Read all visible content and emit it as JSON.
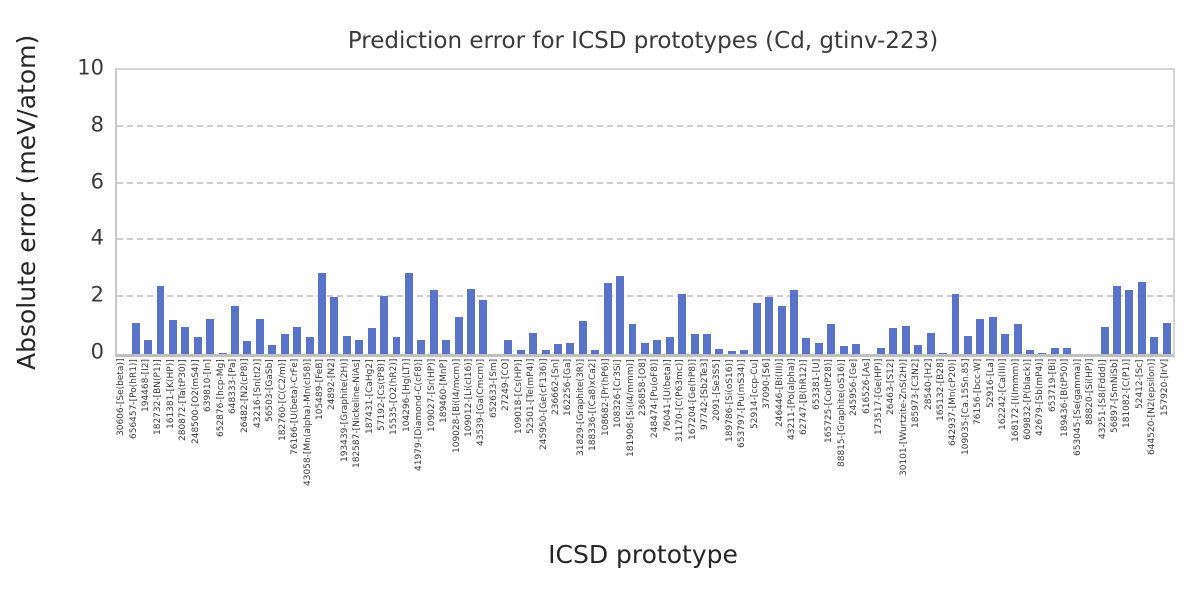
{
  "title": "Prediction error for ICSD prototypes (Cd, gtinv-223)",
  "chart_data": {
    "type": "bar",
    "title": "Prediction error for ICSD prototypes (Cd, gtinv-223)",
    "xlabel": "ICSD prototype",
    "ylabel": "Absolute error (meV/atom)",
    "ylim": [
      0,
      10
    ],
    "yticks": [
      0,
      2,
      4,
      6,
      8,
      10
    ],
    "grid": "horizontal-dashed",
    "legend": "none",
    "bar_color": "#5873c8",
    "grid_color": "#cdcdcd",
    "text_color": "#3a3a3a",
    "background": "#ffffff",
    "categories": [
      "30606-[Se(beta)]",
      "656457-[Po(hR1)]",
      "194468-[I2]",
      "182732-[BN(P1)]",
      "161381-[K(HP)]",
      "280872-[Ta(tP30)]",
      "248500-[O2(mS4)]",
      "639810-[In]",
      "652876-[hcp-Mg]",
      "648333-[Pa]",
      "26482-[N2(cP8)]",
      "43216-[Sn(tI2)]",
      "56503-[GaSb]",
      "182760-[C(C2/m)]",
      "76166-[U(beta)-CrFe]",
      "43058-[Mn(alpha)-Mn(cI58)]",
      "105489-[FeB]",
      "24892-[N2]",
      "193439-[Graphite(2H)]",
      "182587-[Nickeline-NiAs]",
      "187431-[CaHg2]",
      "57192-[Cs(tP8)]",
      "15535-[O2(hR2)]",
      "104296-[Hg(LT)]",
      "41979-[Diamond-C(cF8)]",
      "109027-[Sr(HP)]",
      "189460-[MnP]",
      "109028-[Bi(I4/mcm)]",
      "109012-[Li(cI16)]",
      "43539-[Ga(Cmcm)]",
      "652633-[Sm]",
      "27249-[CO]",
      "109018-[Cs(HP)]",
      "52501-[Te(mP4)]",
      "245950-[Ge(cF136)]",
      "236662-[Sn]",
      "162256-[Ga]",
      "31829-[Graphite(3R)]",
      "188336-[(Ca8)xCa2]",
      "108682-[Pr(hP6)]",
      "108326-[Cr3Si]",
      "181908-[Si(I4/mmm)]",
      "236858-[O8]",
      "248474-[Pu(oF8)]",
      "76041-[U(beta)]",
      "31170-[C(P63mc)]",
      "167204-[Ge(hP8)]",
      "97742-[Sb2Te3]",
      "2091-[Se3S5]",
      "189786-[Si(oS16)]",
      "653797-[Pu(mS34)]",
      "52914-[ccp-Cu]",
      "37090-[S6]",
      "246446-[Bi(III)]",
      "43211-[Po(alpha)]",
      "62747-[B(hR12)]",
      "653381-[U]",
      "165725-[Co(tP28)]",
      "88815-[Graphite(oS16)]",
      "245956-[Ge]",
      "616526-[As]",
      "173517-[Ge(HP)]",
      "26463-[S12]",
      "30101-[Wurtzite-ZnS(2H)]",
      "185973-[C3N2]",
      "28540-[H2]",
      "165132-[B28]",
      "642937-[Mn(cP20)]",
      "109035-[Ca.15Sn.85]",
      "76156-[bcc-W]",
      "52916-[La]",
      "162242-[Ca(III)]",
      "168172-[I(Immm)]",
      "609832-[P(black)]",
      "42679-[Sb(mP4)]",
      "653719-[Bi]",
      "189436-[B(tP50)]",
      "653045-[Se(gamma)]",
      "88820-[Si(HP)]",
      "43251-[S8(Fddd)]",
      "56897-[SmNiSb]",
      "181082-[C(P1)]",
      "52412-[Sc]",
      "644520-[N2(epsilon)]",
      "157920-[IrV]"
    ],
    "values": [
      0.0,
      1.1,
      0.5,
      2.4,
      1.2,
      0.95,
      0.6,
      1.25,
      0.05,
      1.7,
      0.45,
      1.25,
      0.3,
      0.7,
      0.95,
      0.6,
      2.85,
      2.0,
      0.65,
      0.5,
      0.9,
      2.05,
      0.6,
      2.85,
      0.5,
      2.25,
      0.5,
      1.3,
      2.3,
      1.9,
      0.0,
      0.5,
      0.13,
      0.75,
      0.15,
      0.35,
      0.4,
      1.15,
      0.13,
      2.5,
      2.75,
      1.05,
      0.4,
      0.5,
      0.6,
      2.1,
      0.7,
      0.7,
      0.17,
      0.11,
      0.15,
      1.8,
      2.0,
      1.7,
      2.25,
      0.55,
      0.4,
      1.05,
      0.27,
      0.35,
      0.0,
      0.2,
      0.9,
      1.0,
      0.33,
      0.75,
      0.05,
      2.1,
      0.65,
      1.25,
      1.3,
      0.7,
      1.05,
      0.15,
      0.05,
      0.2,
      0.2,
      0.0,
      0.0,
      0.95,
      2.4,
      2.25,
      2.55,
      0.6,
      1.1
    ]
  }
}
